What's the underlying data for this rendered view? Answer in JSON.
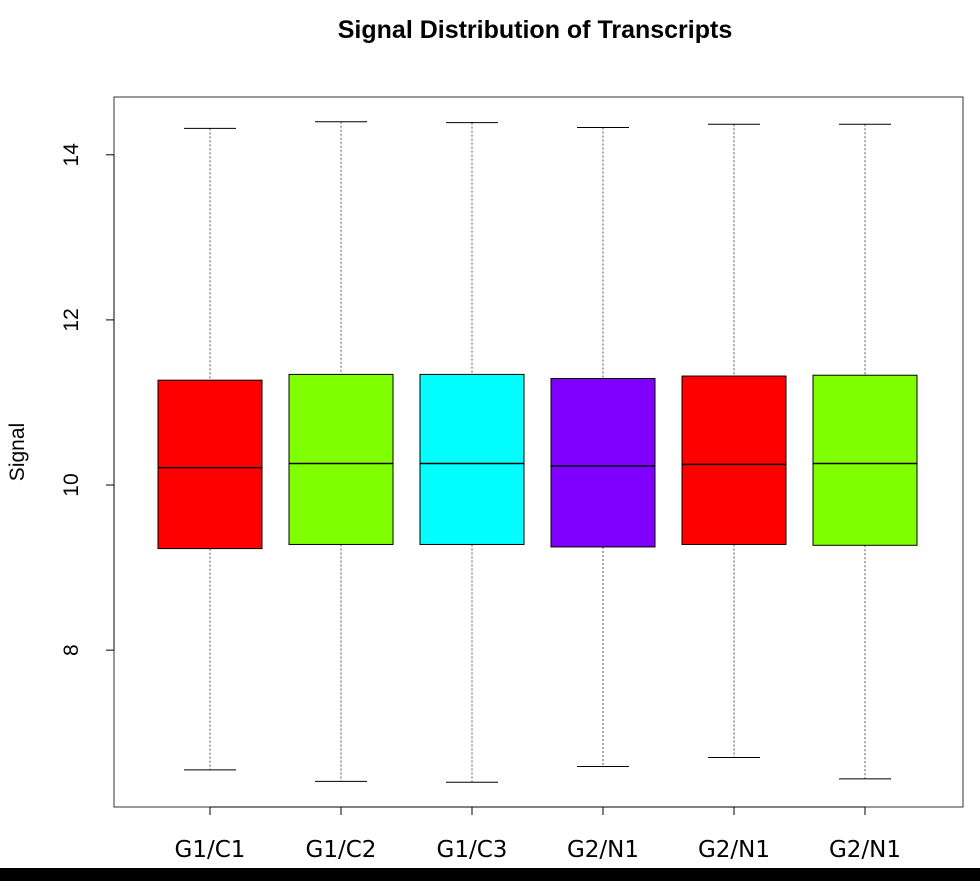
{
  "chart_data": {
    "type": "box",
    "title": "Signal Distribution of Transcripts",
    "xlabel": "",
    "ylabel": "Signal",
    "ylim": [
      6.1,
      14.7
    ],
    "yticks": [
      8,
      10,
      12,
      14
    ],
    "categories": [
      "G1/C1",
      "G1/C2",
      "G1/C3",
      "G2/N1",
      "G2/N1",
      "G2/N1"
    ],
    "colors": [
      "#ff0000",
      "#80ff00",
      "#00ffff",
      "#8000ff",
      "#ff0000",
      "#80ff00"
    ],
    "boxes": [
      {
        "min": 6.55,
        "q1": 9.23,
        "median": 10.21,
        "q3": 11.27,
        "max": 14.32
      },
      {
        "min": 6.41,
        "q1": 9.28,
        "median": 10.26,
        "q3": 11.34,
        "max": 14.4
      },
      {
        "min": 6.4,
        "q1": 9.28,
        "median": 10.26,
        "q3": 11.34,
        "max": 14.39
      },
      {
        "min": 6.59,
        "q1": 9.25,
        "median": 10.23,
        "q3": 11.29,
        "max": 14.33
      },
      {
        "min": 6.7,
        "q1": 9.28,
        "median": 10.25,
        "q3": 11.32,
        "max": 14.37
      },
      {
        "min": 6.44,
        "q1": 9.27,
        "median": 10.26,
        "q3": 11.33,
        "max": 14.37
      }
    ],
    "grid": false,
    "legend": "none"
  }
}
